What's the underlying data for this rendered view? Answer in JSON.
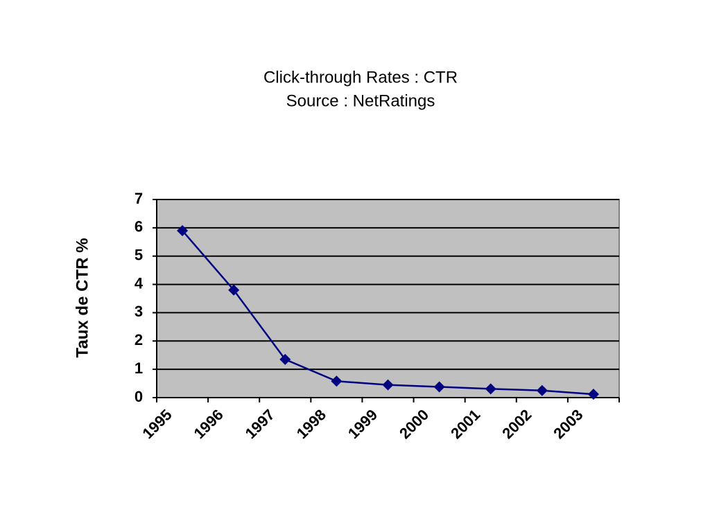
{
  "chart_data": {
    "type": "line",
    "title": "Click-through Rates : CTR",
    "subtitle": "Source : NetRatings",
    "y_label": "Taux de CTR %",
    "categories": [
      "1995",
      "1996",
      "1997",
      "1998",
      "1999",
      "2000",
      "2001",
      "2002",
      "2003"
    ],
    "values": [
      5.9,
      3.8,
      1.35,
      0.58,
      0.45,
      0.38,
      0.31,
      0.25,
      0.12
    ],
    "color": "#000080",
    "plot_background": "#c0c0c0",
    "ylim": [
      0,
      7
    ],
    "yticks": [
      0,
      1,
      2,
      3,
      4,
      5,
      6,
      7
    ],
    "grid": true
  }
}
